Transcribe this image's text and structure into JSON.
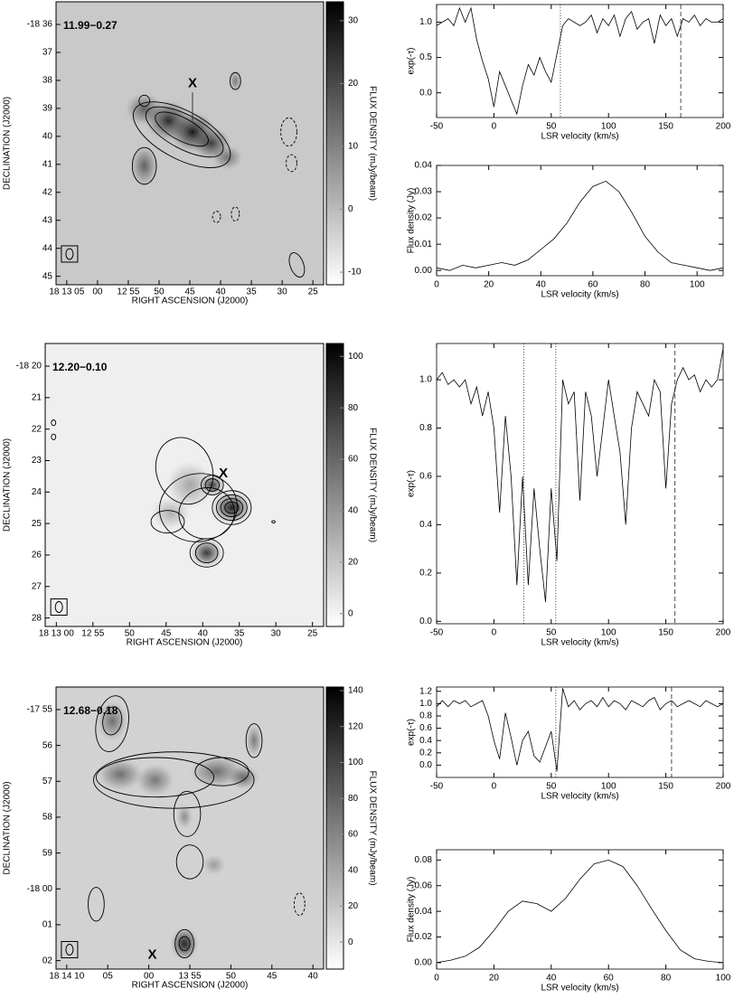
{
  "chart_data": [
    {
      "type": "image",
      "label": "11.99−0.27",
      "marker": "X",
      "xtick_labels": [
        "18 13 05",
        "00",
        "12 55",
        "50",
        "45",
        "40",
        "35",
        "30",
        "25"
      ],
      "ytick_labels": [
        "-18 36",
        "37",
        "38",
        "39",
        "40",
        "41",
        "42",
        "43",
        "44",
        "45"
      ],
      "xlabel": "RIGHT ASCENSION (J2000)",
      "ylabel": "DECLINATION (J2000)",
      "colorbar": {
        "label": "FLUX DENSITY (mJy/beam)",
        "lim": [
          -12,
          33
        ],
        "ticks": [
          -10,
          0,
          10,
          20,
          30
        ]
      }
    },
    {
      "type": "line",
      "xlabel": "LSR velocity (km/s)",
      "ylabel": "exp(-τ)",
      "xlim": [
        -50,
        200
      ],
      "xticks": [
        -50,
        0,
        50,
        100,
        150,
        200
      ],
      "ylim": [
        -0.35,
        1.25
      ],
      "yticks": [
        {
          "value": 0,
          "label": "0.0"
        },
        {
          "value": 0.5,
          "label": "0.5"
        },
        {
          "value": 1,
          "label": "1.0"
        }
      ],
      "x": [
        -50,
        -45,
        -40,
        -35,
        -30,
        -25,
        -20,
        -15,
        -10,
        -5,
        0,
        5,
        10,
        15,
        20,
        25,
        30,
        35,
        40,
        45,
        50,
        55,
        60,
        65,
        70,
        75,
        80,
        85,
        90,
        95,
        100,
        105,
        110,
        115,
        120,
        125,
        130,
        135,
        140,
        145,
        150,
        155,
        160,
        165,
        170,
        175,
        180,
        185,
        190,
        195,
        200
      ],
      "values": [
        0.95,
        1.0,
        1.05,
        0.95,
        1.2,
        1.0,
        1.2,
        0.75,
        0.45,
        0.2,
        -0.2,
        0.3,
        0.1,
        -0.1,
        -0.3,
        0.1,
        0.4,
        0.25,
        0.5,
        0.3,
        0.15,
        0.55,
        0.95,
        1.05,
        1.0,
        0.95,
        1.0,
        1.1,
        0.85,
        1.05,
        0.95,
        1.1,
        0.8,
        1.05,
        1.15,
        0.9,
        1.0,
        1.05,
        0.7,
        1.1,
        0.95,
        1.05,
        0.8,
        1.05,
        1.0,
        1.1,
        0.95,
        1.05,
        1.0,
        1.0,
        1.05
      ],
      "vlines": [
        {
          "x": 58,
          "style": "dotted"
        },
        {
          "x": 163,
          "style": "dashed"
        }
      ]
    },
    {
      "type": "line",
      "xlabel": "LSR velocity (km/s)",
      "ylabel": "Flux density (Jy)",
      "xlim": [
        0,
        110
      ],
      "xticks": [
        0,
        20,
        40,
        60,
        80,
        100
      ],
      "ylim": [
        -0.002,
        0.04
      ],
      "yticks": [
        {
          "value": 0,
          "label": "0.00"
        },
        0.01,
        0.02,
        0.03,
        0.04
      ],
      "x": [
        0,
        5,
        10,
        15,
        20,
        25,
        30,
        35,
        40,
        45,
        50,
        55,
        60,
        65,
        70,
        75,
        80,
        85,
        90,
        95,
        100,
        105,
        110
      ],
      "values": [
        0.001,
        0.0,
        0.002,
        0.001,
        0.002,
        0.003,
        0.002,
        0.004,
        0.008,
        0.012,
        0.018,
        0.026,
        0.032,
        0.034,
        0.03,
        0.022,
        0.013,
        0.007,
        0.003,
        0.002,
        0.001,
        0.0,
        0.001
      ]
    },
    {
      "type": "image",
      "label": "12.20−0.10",
      "marker": "X",
      "xtick_labels": [
        "18 13 00",
        "12 55",
        "50",
        "45",
        "40",
        "35",
        "30",
        "25"
      ],
      "ytick_labels": [
        "-18 20",
        "21",
        "22",
        "23",
        "24",
        "25",
        "26",
        "27",
        "28"
      ],
      "xlabel": "RIGHT ASCENSION (J2000)",
      "ylabel": "DECLINATION (J2000)",
      "colorbar": {
        "label": "FLUX DENSITY (mJy/beam)",
        "lim": [
          -5,
          105
        ],
        "ticks": [
          0,
          20,
          40,
          60,
          80,
          100
        ]
      }
    },
    {
      "type": "line",
      "xlabel": "LSR velocity (km/s)",
      "ylabel": "exp(-τ)",
      "xlim": [
        -50,
        200
      ],
      "xticks": [
        -50,
        0,
        50,
        100,
        150,
        200
      ],
      "ylim": [
        -0.01,
        1.15
      ],
      "yticks": [
        {
          "value": 0,
          "label": "0.0"
        },
        0.2,
        0.4,
        0.6,
        0.8,
        {
          "value": 1,
          "label": "1.0"
        }
      ],
      "x": [
        -50,
        -45,
        -40,
        -35,
        -30,
        -25,
        -20,
        -15,
        -10,
        -5,
        0,
        5,
        10,
        15,
        20,
        25,
        30,
        35,
        40,
        45,
        50,
        55,
        60,
        65,
        70,
        75,
        80,
        85,
        90,
        95,
        100,
        105,
        110,
        115,
        120,
        125,
        130,
        135,
        140,
        145,
        150,
        155,
        160,
        165,
        170,
        175,
        180,
        185,
        190,
        195,
        200
      ],
      "values": [
        1.0,
        1.03,
        0.98,
        1.0,
        0.97,
        1.0,
        0.9,
        0.97,
        0.85,
        0.95,
        0.8,
        0.45,
        0.85,
        0.6,
        0.15,
        0.6,
        0.15,
        0.55,
        0.3,
        0.08,
        0.55,
        0.25,
        1.0,
        0.9,
        0.95,
        0.5,
        0.95,
        0.85,
        0.6,
        0.8,
        1.0,
        0.85,
        0.7,
        0.4,
        0.8,
        0.95,
        0.9,
        0.85,
        1.0,
        0.95,
        0.55,
        0.9,
        1.0,
        1.05,
        1.0,
        1.02,
        0.95,
        1.0,
        0.97,
        1.0,
        1.13
      ],
      "vlines": [
        {
          "x": 26,
          "style": "dotted"
        },
        {
          "x": 54,
          "style": "dotted"
        },
        {
          "x": 158,
          "style": "dashed"
        }
      ]
    },
    {
      "type": "image",
      "label": "12.68−0.18",
      "marker": "X",
      "xtick_labels": [
        "18 14 10",
        "05",
        "00",
        "13 55",
        "50",
        "45",
        "40"
      ],
      "ytick_labels": [
        "-17 55",
        "56",
        "57",
        "58",
        "59",
        "-18 00",
        "01",
        "02"
      ],
      "xlabel": "RIGHT ASCENSION (J2000)",
      "ylabel": "DECLINATION (J2000)",
      "colorbar": {
        "label": "FLUX DENSITY (mJy/beam)",
        "lim": [
          -15,
          142
        ],
        "ticks": [
          0,
          20,
          40,
          60,
          80,
          100,
          120,
          140
        ]
      }
    },
    {
      "type": "line",
      "xlabel": "LSR velocity (km/s)",
      "ylabel": "exp(-τ)",
      "xlim": [
        -50,
        200
      ],
      "xticks": [
        -50,
        0,
        50,
        100,
        150,
        200
      ],
      "ylim": [
        -0.2,
        1.27
      ],
      "yticks": [
        {
          "value": 0,
          "label": "0.0"
        },
        0.2,
        0.4,
        0.6,
        0.8,
        {
          "value": 1,
          "label": "1.0"
        },
        1.2
      ],
      "x": [
        -50,
        -45,
        -40,
        -35,
        -30,
        -25,
        -20,
        -15,
        -10,
        -5,
        0,
        5,
        10,
        15,
        20,
        25,
        30,
        35,
        40,
        45,
        50,
        55,
        60,
        65,
        70,
        75,
        80,
        85,
        90,
        95,
        100,
        105,
        110,
        115,
        120,
        125,
        130,
        135,
        140,
        145,
        150,
        155,
        160,
        165,
        170,
        175,
        180,
        185,
        190,
        195,
        200
      ],
      "values": [
        0.95,
        1.05,
        0.95,
        1.05,
        1.0,
        1.05,
        0.95,
        1.0,
        1.05,
        0.8,
        0.4,
        0.1,
        0.85,
        0.45,
        0.0,
        0.4,
        0.55,
        0.15,
        0.05,
        0.3,
        0.55,
        -0.1,
        1.25,
        0.95,
        1.05,
        0.9,
        1.0,
        1.05,
        0.95,
        1.1,
        0.95,
        1.05,
        1.0,
        0.9,
        1.05,
        1.0,
        0.95,
        1.05,
        1.1,
        0.9,
        1.0,
        1.05,
        0.95,
        1.0,
        1.05,
        1.0,
        0.95,
        1.05,
        1.0,
        0.95,
        1.0
      ],
      "vlines": [
        {
          "x": 54,
          "style": "dotted"
        },
        {
          "x": 155,
          "style": "dashed"
        }
      ]
    },
    {
      "type": "line",
      "xlabel": "LSR velocity (km/s)",
      "ylabel": "Flux density (Jy)",
      "xlim": [
        0,
        100
      ],
      "xticks": [
        0,
        20,
        40,
        60,
        80,
        100
      ],
      "ylim": [
        -0.005,
        0.088
      ],
      "yticks": [
        {
          "value": 0,
          "label": "0.00"
        },
        {
          "value": 0.02,
          "label": "0.02"
        },
        {
          "value": 0.04,
          "label": "0.04"
        },
        {
          "value": 0.06,
          "label": "0.06"
        },
        {
          "value": 0.08,
          "label": "0.08"
        }
      ],
      "x": [
        0,
        5,
        10,
        15,
        20,
        25,
        30,
        35,
        40,
        45,
        50,
        55,
        60,
        65,
        70,
        75,
        80,
        85,
        90,
        95,
        100
      ],
      "values": [
        0.0,
        0.002,
        0.005,
        0.012,
        0.025,
        0.04,
        0.048,
        0.046,
        0.04,
        0.05,
        0.065,
        0.077,
        0.08,
        0.075,
        0.06,
        0.042,
        0.025,
        0.01,
        0.003,
        0.001,
        0.0
      ]
    }
  ]
}
